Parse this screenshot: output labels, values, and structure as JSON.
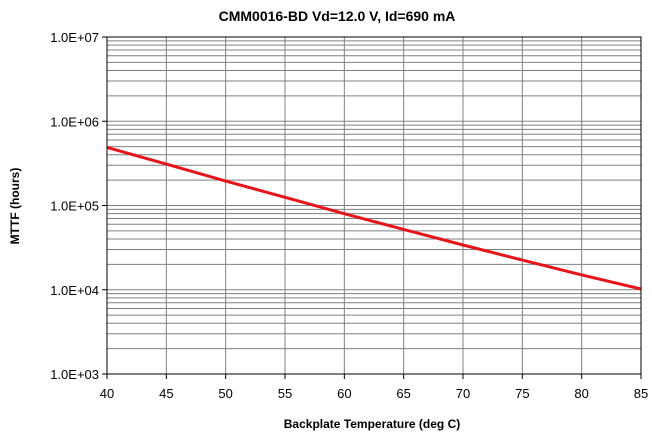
{
  "chart_data": {
    "type": "line",
    "title": "CMM0016-BD Vd=12.0 V, Id=690 mA",
    "xlabel": "Backplate Temperature (deg C)",
    "ylabel": "MTTF (hours)",
    "xlim": [
      40,
      85
    ],
    "ylim": [
      1000,
      10000000
    ],
    "yscale": "log",
    "grid": true,
    "x_ticks": [
      "40",
      "45",
      "50",
      "55",
      "60",
      "65",
      "70",
      "75",
      "80",
      "85"
    ],
    "y_ticks": [
      {
        "value": 1000,
        "label": "1.0E+03"
      },
      {
        "value": 10000,
        "label": "1.0E+04"
      },
      {
        "value": 100000,
        "label": "1.0E+05"
      },
      {
        "value": 1000000,
        "label": "1.0E+06"
      },
      {
        "value": 10000000,
        "label": "1.0E+07"
      }
    ],
    "series": [
      {
        "color": "#e8141b",
        "x": [
          40,
          45,
          50,
          55,
          60,
          65,
          70,
          75,
          80,
          85
        ],
        "y": [
          490000,
          310000,
          195000,
          125000,
          80000,
          52000,
          34000,
          22500,
          15000,
          10200
        ]
      }
    ]
  }
}
